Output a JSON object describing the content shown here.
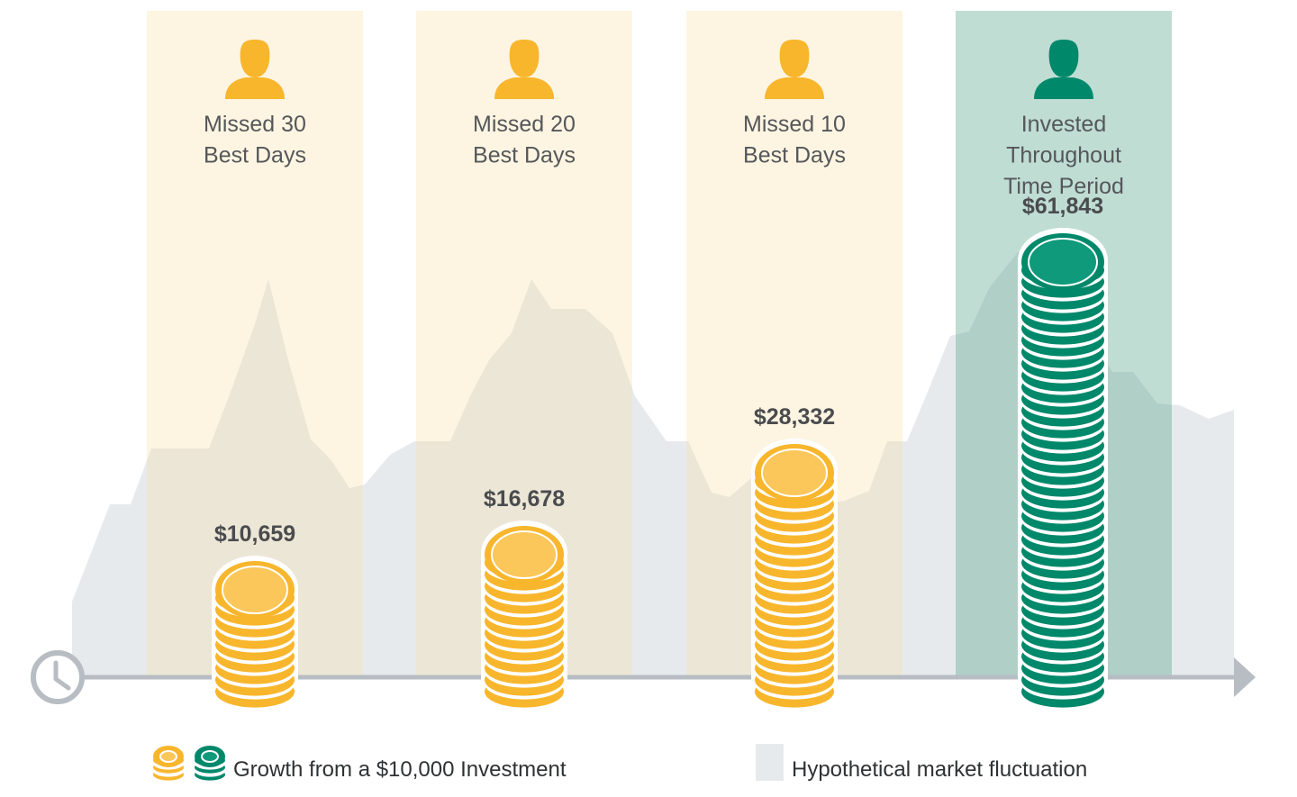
{
  "colors": {
    "gold": "#F8B62D",
    "gold_light": "#FBC75A",
    "green": "#00886B",
    "green_light": "#0E9A7B",
    "panel_gold": "#FDF5E2",
    "panel_green": "#BFDDD3",
    "fluctuation": "#E7EAED",
    "fluctuation_on_gold": "#ECE6D6",
    "fluctuation_on_green": "#AFCFC7",
    "axis": "#B7BDC2",
    "text": "#55575A",
    "value_text": "#4A4B4D"
  },
  "chart_data": {
    "type": "bar",
    "categories": [
      [
        "Missed 30",
        "Best Days"
      ],
      [
        "Missed 20",
        "Best Days"
      ],
      [
        "Missed 10",
        "Best Days"
      ],
      [
        "Invested",
        "Throughout",
        "Time Period"
      ]
    ],
    "values": [
      10659,
      16678,
      28332,
      61843
    ],
    "value_labels": [
      "$10,659",
      "$16,678",
      "$28,332",
      "$61,843"
    ],
    "series_colors": [
      "gold",
      "gold",
      "gold",
      "green"
    ],
    "legend": {
      "growth": "Growth from a $10,000 Investment",
      "fluctuation": "Hypothetical market fluctuation"
    },
    "xlabel": "",
    "ylabel": "",
    "grid": false
  }
}
